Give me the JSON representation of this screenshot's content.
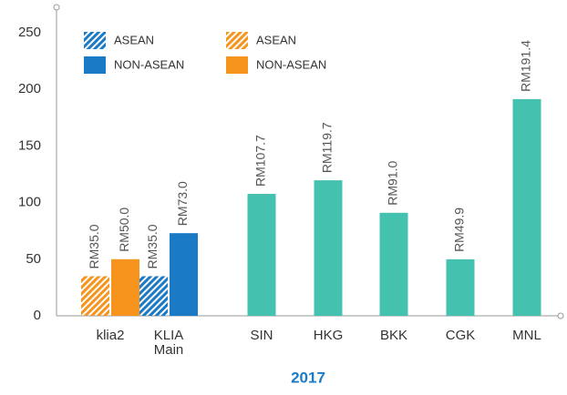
{
  "chart_data": {
    "type": "bar",
    "xlabel": "2017",
    "categories": [
      "klia2",
      "KLIA\nMain",
      "SIN",
      "HKG",
      "BKK",
      "CGK",
      "MNL"
    ],
    "ylim": [
      0,
      250
    ],
    "yticks": [
      0,
      50,
      100,
      150,
      200,
      250
    ],
    "series": [
      {
        "name": "ASEAN",
        "color": "#1a7ac6",
        "hatched": true,
        "values": [
          null,
          35.0,
          null,
          null,
          null,
          null,
          null
        ],
        "value_labels": [
          null,
          "RM35.0",
          null,
          null,
          null,
          null,
          null
        ]
      },
      {
        "name": "NON-ASEAN",
        "color": "#1a7ac6",
        "hatched": false,
        "values": [
          null,
          73.0,
          null,
          null,
          null,
          null,
          null
        ],
        "value_labels": [
          null,
          "RM73.0",
          null,
          null,
          null,
          null,
          null
        ]
      },
      {
        "name": "ASEAN",
        "color": "#f7941d",
        "hatched": true,
        "values": [
          35.0,
          null,
          null,
          null,
          null,
          null,
          null
        ],
        "value_labels": [
          "RM35.0",
          null,
          null,
          null,
          null,
          null,
          null
        ]
      },
      {
        "name": "NON-ASEAN",
        "color": "#f7941d",
        "hatched": false,
        "values": [
          50.0,
          null,
          null,
          null,
          null,
          null,
          null
        ],
        "value_labels": [
          "RM50.0",
          null,
          null,
          null,
          null,
          null,
          null
        ]
      },
      {
        "color": "#45c1b0",
        "hatched": false,
        "values": [
          null,
          null,
          107.7,
          119.7,
          91.0,
          49.9,
          191.4
        ],
        "value_labels": [
          null,
          null,
          "RM107.7",
          "RM119.7",
          "RM91.0",
          "RM49.9",
          "RM191.4"
        ]
      }
    ]
  }
}
